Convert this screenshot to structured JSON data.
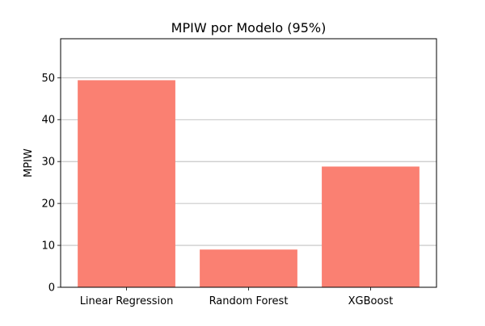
{
  "chart_data": {
    "type": "bar",
    "title": "MPIW por Modelo (95%)",
    "xlabel": "",
    "ylabel": "MPIW",
    "categories": [
      "Linear Regression",
      "Random Forest",
      "XGBoost"
    ],
    "values": [
      49.4,
      9.0,
      28.8
    ],
    "ylim": [
      0,
      59.3
    ],
    "yticks": [
      0,
      10,
      20,
      30,
      40,
      50
    ],
    "grid": "y",
    "bar_color": "#fa8072",
    "grid_color": "#b0b0b0"
  }
}
